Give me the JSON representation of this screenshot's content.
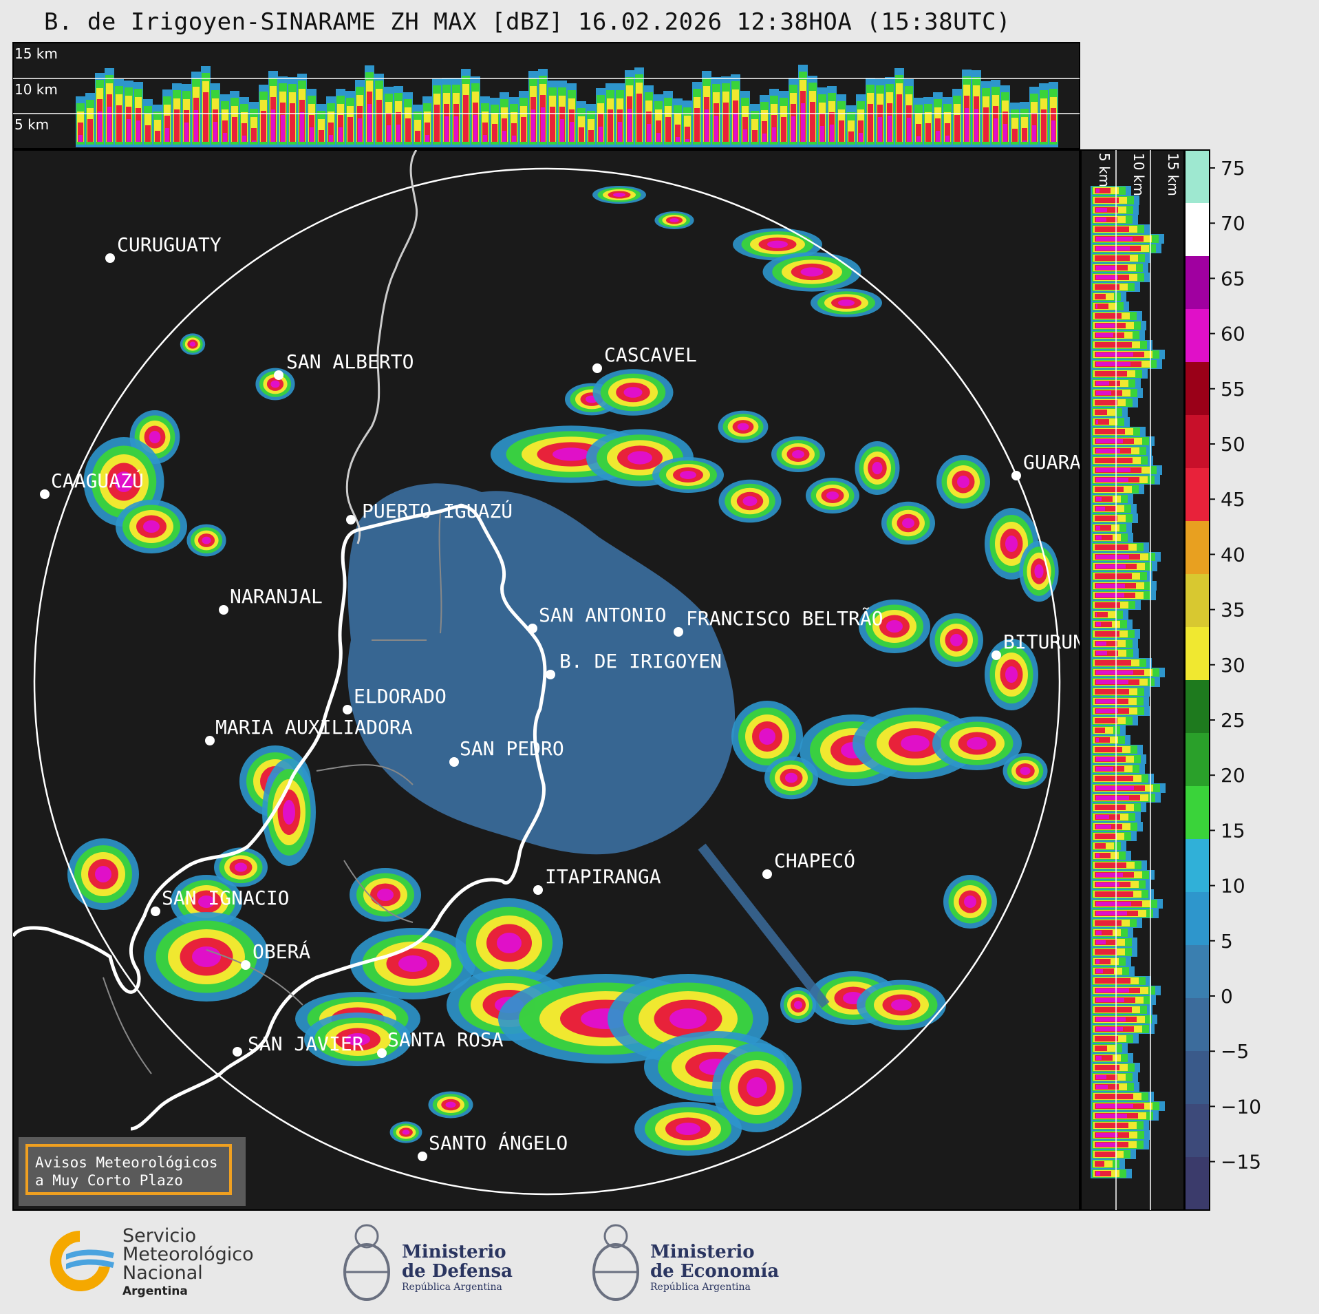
{
  "header": {
    "title": "B. de Irigoyen-SINARAME ZH MAX [dBZ] 16.02.2026 12:38HOA (15:38UTC)"
  },
  "altitude_labels": {
    "top": [
      "15 km",
      "10 km",
      "5 km"
    ],
    "side": [
      "5 km",
      "10 km",
      "15 km"
    ]
  },
  "colorbar": {
    "ticks": [
      "75",
      "70",
      "65",
      "60",
      "55",
      "50",
      "45",
      "40",
      "35",
      "30",
      "25",
      "20",
      "15",
      "10",
      "5",
      "0",
      "−5",
      "−10",
      "−15"
    ],
    "colors": [
      "#3b3b6b",
      "#3d4a7a",
      "#3a5a8a",
      "#3c6c9c",
      "#3a7fb0",
      "#2e96cc",
      "#30b0d8",
      "#3ad33a",
      "#2aa02a",
      "#1e7a1e",
      "#f0e830",
      "#d8c830",
      "#e8a020",
      "#e8223a",
      "#c8102a",
      "#9a0018",
      "#e010c8",
      "#a000a0",
      "#ffffff",
      "#9ee8d0"
    ]
  },
  "cities": [
    {
      "name": "CURUGUATY"
    },
    {
      "name": "SAN ALBERTO"
    },
    {
      "name": "CAAGUAZÚ"
    },
    {
      "name": "CASCAVEL"
    },
    {
      "name": "GUARAPUAVA"
    },
    {
      "name": "PUERTO IGUAZÚ"
    },
    {
      "name": "NARANJAL"
    },
    {
      "name": "SAN ANTONIO"
    },
    {
      "name": "FRANCISCO BELTRÃO"
    },
    {
      "name": "BITURUNA"
    },
    {
      "name": "B. DE IRIGOYEN"
    },
    {
      "name": "ELDORADO"
    },
    {
      "name": "MARIA AUXILIADORA"
    },
    {
      "name": "SAN PEDRO"
    },
    {
      "name": "CHAPECÓ"
    },
    {
      "name": "ITAPIRANGA"
    },
    {
      "name": "SAN IGNACIO"
    },
    {
      "name": "OBERÁ"
    },
    {
      "name": "SAN JAVIER"
    },
    {
      "name": "SANTA ROSA"
    },
    {
      "name": "SANTO ÁNGELO"
    }
  ],
  "alerts": {
    "line1": "Avisos Meteorológicos",
    "line2": "a Muy Corto Plazo"
  },
  "footer": {
    "smn_line1": "Servicio",
    "smn_line2": "Meteorológico",
    "smn_line3": "Nacional",
    "smn_country": "Argentina",
    "defensa_line1": "Ministerio",
    "defensa_line2": "de Defensa",
    "defensa_sub": "República Argentina",
    "economia_line1": "Ministerio",
    "economia_line2": "de Economía",
    "economia_sub": "República Argentina"
  }
}
